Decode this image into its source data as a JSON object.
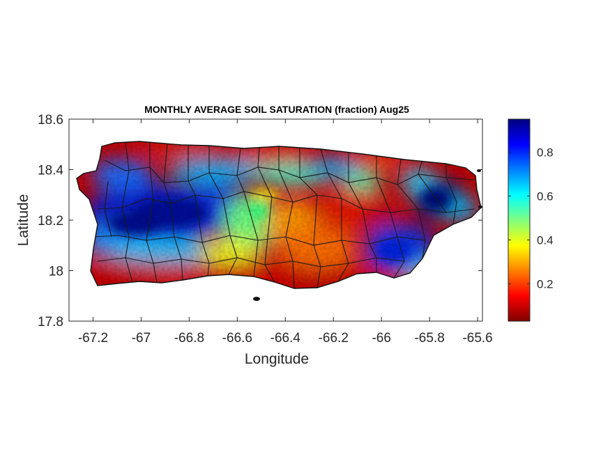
{
  "chart_data": {
    "type": "heatmap",
    "title": "MONTHLY AVERAGE SOIL SATURATION (fraction) Aug25",
    "xlabel": "Longitude",
    "ylabel": "Latitude",
    "xlim": [
      -67.3,
      -65.58
    ],
    "ylim": [
      17.8,
      18.6
    ],
    "xticks": [
      -67.2,
      -67,
      -66.8,
      -66.6,
      -66.4,
      -66.2,
      -66,
      -65.8,
      -65.6
    ],
    "xtick_labels": [
      "-67.2",
      "-67",
      "-66.8",
      "-66.6",
      "-66.4",
      "-66.2",
      "-66",
      "-65.8",
      "-65.6"
    ],
    "yticks": [
      17.8,
      18,
      18.2,
      18.4,
      18.6
    ],
    "ytick_labels": [
      "17.8",
      "18",
      "18.2",
      "18.4",
      "18.6"
    ],
    "colorbar": {
      "colormap": "jet",
      "range": [
        0.03,
        0.95
      ],
      "ticks": [
        0.2,
        0.4,
        0.6,
        0.8
      ],
      "tick_labels": [
        "0.2",
        "0.4",
        "0.6",
        "0.8"
      ]
    },
    "wet_zones": [
      {
        "lon": -67.0,
        "lat": 18.21,
        "value": 0.9
      },
      {
        "lon": -66.8,
        "lat": 18.24,
        "value": 0.88
      },
      {
        "lon": -67.17,
        "lat": 18.3,
        "value": 0.85
      },
      {
        "lon": -66.55,
        "lat": 18.3,
        "value": 0.55
      },
      {
        "lon": -65.93,
        "lat": 18.1,
        "value": 0.9
      },
      {
        "lon": -65.78,
        "lat": 18.28,
        "value": 0.93
      },
      {
        "lon": -66.22,
        "lat": 18.38,
        "value": 0.6
      }
    ],
    "dry_zones": [
      {
        "lon": -66.1,
        "lat": 18.18,
        "value": 0.12
      },
      {
        "lon": -66.25,
        "lat": 17.98,
        "value": 0.08
      },
      {
        "lon": -67.05,
        "lat": 18.47,
        "value": 0.1
      },
      {
        "lon": -66.5,
        "lat": 18.44,
        "value": 0.12
      },
      {
        "lon": -67.1,
        "lat": 17.98,
        "value": 0.08
      },
      {
        "lon": -66.4,
        "lat": 18.1,
        "value": 0.25
      }
    ],
    "grid": false
  }
}
